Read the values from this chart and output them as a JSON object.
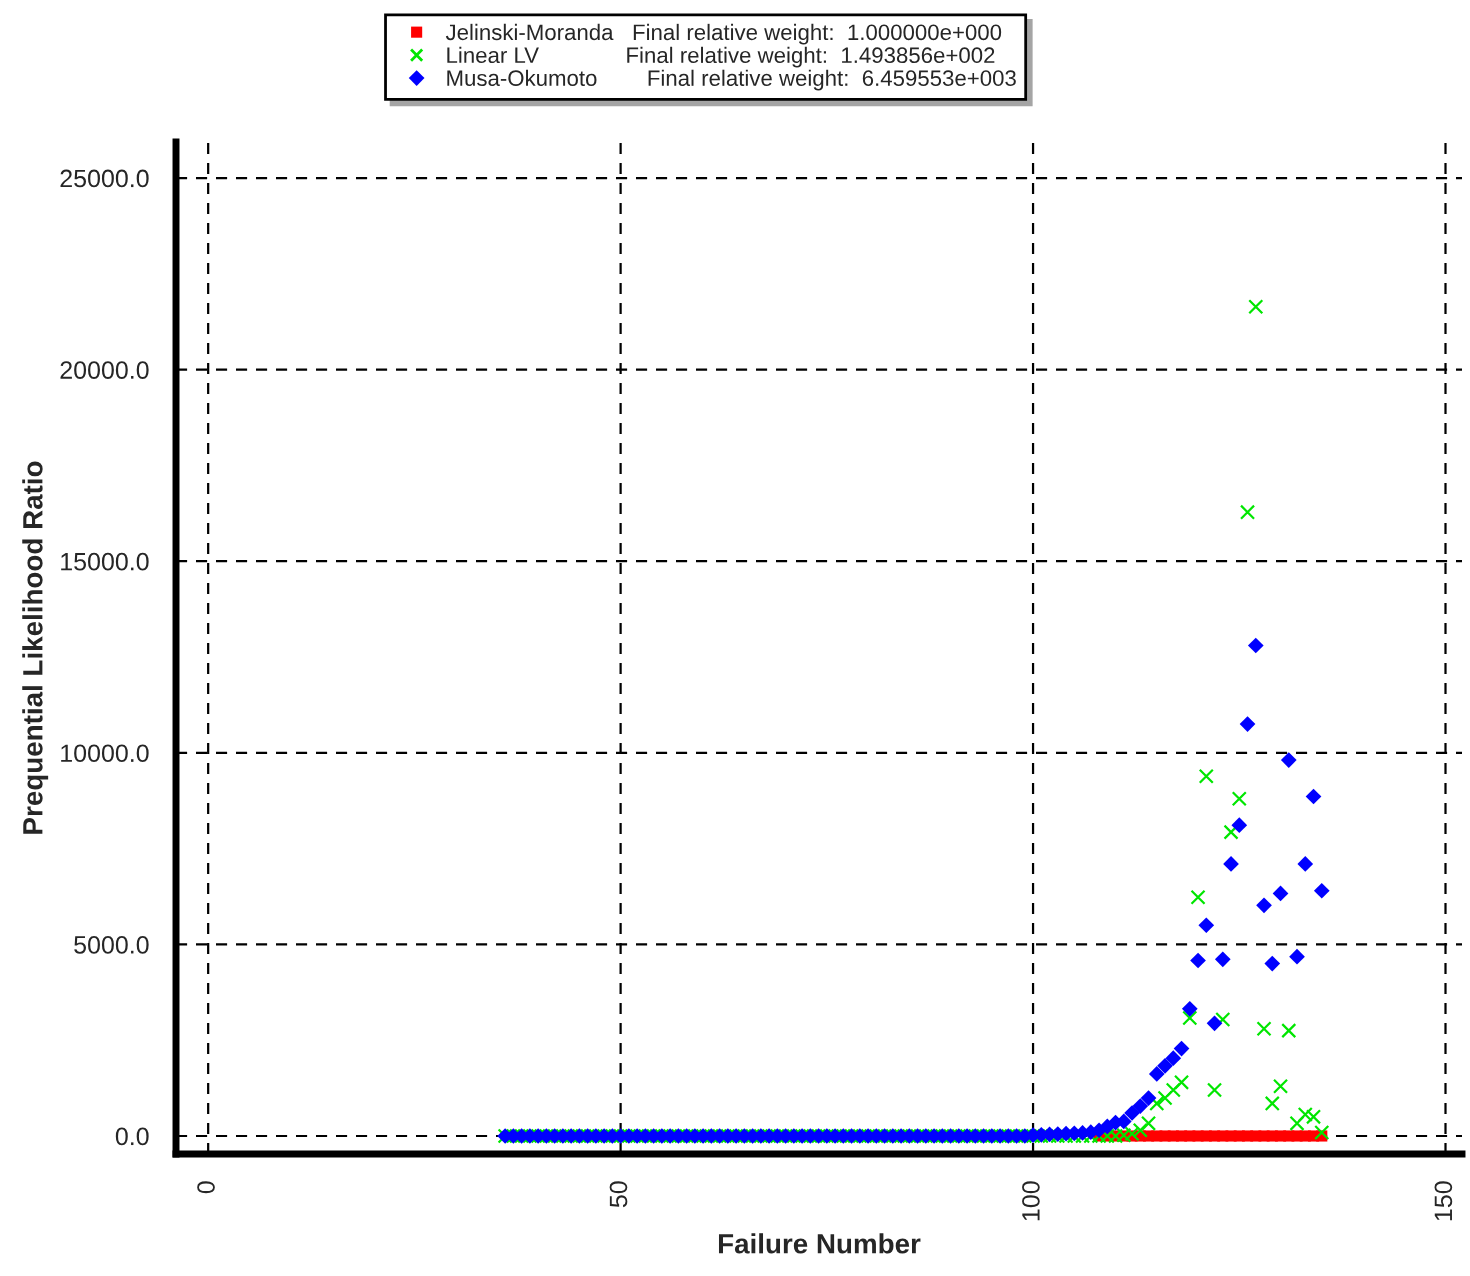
{
  "chart_data": {
    "type": "scatter",
    "xlabel": "Failure Number",
    "ylabel": "Prequential Likelihood Ratio",
    "x": [
      36,
      37,
      38,
      39,
      40,
      41,
      42,
      43,
      44,
      45,
      46,
      47,
      48,
      49,
      50,
      51,
      52,
      53,
      54,
      55,
      56,
      57,
      58,
      59,
      60,
      61,
      62,
      63,
      64,
      65,
      66,
      67,
      68,
      69,
      70,
      71,
      72,
      73,
      74,
      75,
      76,
      77,
      78,
      79,
      80,
      81,
      82,
      83,
      84,
      85,
      86,
      87,
      88,
      89,
      90,
      91,
      92,
      93,
      94,
      95,
      96,
      97,
      98,
      99,
      100,
      101,
      102,
      103,
      104,
      105,
      106,
      107,
      108,
      109,
      110,
      111,
      112,
      113,
      114,
      115,
      116,
      117,
      118,
      119,
      120,
      121,
      122,
      123,
      124,
      125,
      126,
      127,
      128,
      129,
      130,
      131,
      132,
      133,
      134,
      135
    ],
    "series": [
      {
        "name": "Jelinski-Moranda   Final relative weight:  1.000000e+000",
        "color": "#ff0000",
        "marker": "square",
        "values": [
          null,
          null,
          null,
          null,
          null,
          null,
          null,
          null,
          null,
          null,
          null,
          null,
          null,
          null,
          null,
          null,
          null,
          null,
          null,
          null,
          null,
          null,
          null,
          null,
          null,
          null,
          null,
          null,
          null,
          null,
          null,
          null,
          null,
          null,
          null,
          null,
          null,
          null,
          null,
          null,
          null,
          null,
          null,
          null,
          null,
          null,
          null,
          null,
          null,
          null,
          null,
          null,
          null,
          null,
          null,
          null,
          null,
          null,
          null,
          null,
          null,
          null,
          null,
          null,
          null,
          null,
          null,
          null,
          null,
          null,
          null,
          null,
          0,
          0,
          0,
          0,
          0,
          0,
          0,
          0,
          0,
          0,
          0,
          0,
          0,
          0,
          0,
          0,
          0,
          0,
          0,
          0,
          0,
          0,
          0,
          0,
          0,
          0,
          0,
          0
        ]
      },
      {
        "name": "Linear LV              Final relative weight:  1.493856e+002",
        "color": "#00e600",
        "marker": "cross",
        "values": [
          0,
          0,
          0,
          0,
          0,
          0,
          0,
          0,
          0,
          0,
          0,
          0,
          0,
          0,
          0,
          0,
          0,
          0,
          0,
          0,
          0,
          0,
          0,
          0,
          0,
          0,
          0,
          0,
          0,
          0,
          0,
          0,
          0,
          0,
          0,
          0,
          0,
          0,
          0,
          0,
          0,
          0,
          0,
          0,
          0,
          0,
          0,
          0,
          0,
          0,
          0,
          0,
          0,
          0,
          0,
          0,
          0,
          0,
          0,
          0,
          0,
          0,
          0,
          0,
          0,
          0,
          0,
          0,
          0,
          0,
          0,
          0,
          0,
          0,
          0,
          20,
          60,
          150,
          330,
          850,
          990,
          1200,
          1400,
          3080,
          6230,
          9390,
          1200,
          3040,
          7930,
          8800,
          16280,
          21640,
          2800,
          850,
          1300,
          2750,
          330,
          560,
          500,
          90
        ]
      },
      {
        "name": "Musa-Okumoto        Final relative weight:  6.459553e+003",
        "color": "#0000ff",
        "marker": "diamond",
        "values": [
          0,
          0,
          0,
          0,
          0,
          0,
          0,
          0,
          0,
          0,
          0,
          0,
          0,
          0,
          0,
          0,
          0,
          0,
          0,
          0,
          0,
          0,
          0,
          0,
          0,
          0,
          0,
          0,
          0,
          0,
          0,
          0,
          0,
          0,
          0,
          0,
          0,
          0,
          0,
          0,
          0,
          0,
          0,
          0,
          0,
          0,
          0,
          0,
          0,
          0,
          0,
          0,
          0,
          0,
          0,
          0,
          0,
          0,
          0,
          0,
          0,
          0,
          0,
          0,
          20,
          30,
          40,
          50,
          60,
          70,
          80,
          100,
          150,
          250,
          350,
          380,
          600,
          780,
          990,
          1620,
          1830,
          2030,
          2280,
          3320,
          4580,
          5500,
          2940,
          4610,
          7100,
          8110,
          10750,
          12800,
          6020,
          4500,
          6330,
          9810,
          4680,
          7100,
          8860,
          6400
        ]
      }
    ],
    "xlim": [
      -3.9,
      152
    ],
    "ylim": [
      -470,
      25940
    ],
    "xticks": [
      0,
      50,
      100,
      150
    ],
    "yticks": [
      {
        "value": 0,
        "label": "0.0"
      },
      {
        "value": 5000,
        "label": "5000.0"
      },
      {
        "value": 10000,
        "label": "10000.0"
      },
      {
        "value": 15000,
        "label": "15000.0"
      },
      {
        "value": 20000,
        "label": "20000.0"
      },
      {
        "value": 25000,
        "label": "25000.0"
      }
    ],
    "grid": true,
    "legend": "top"
  }
}
